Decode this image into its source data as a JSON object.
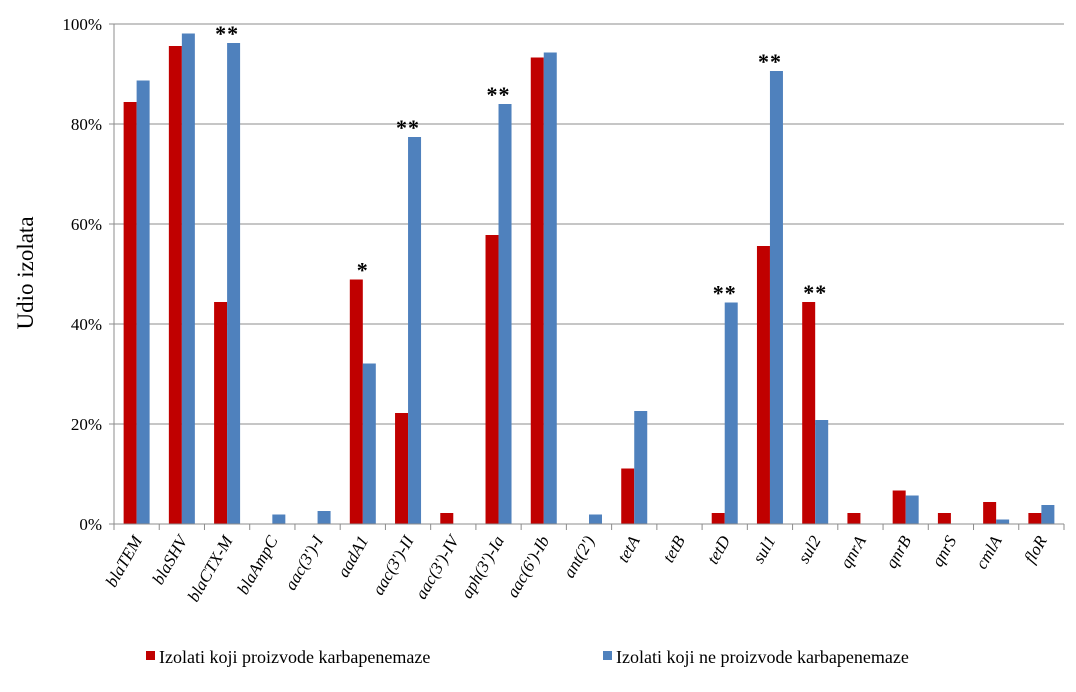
{
  "chart_data": {
    "type": "bar",
    "title": "",
    "xlabel": "",
    "ylabel": "Udio izolata",
    "ylim": [
      0,
      100
    ],
    "yticks": [
      "0%",
      "20%",
      "40%",
      "60%",
      "80%",
      "100%"
    ],
    "grid": true,
    "legend_position": "bottom",
    "categories": [
      "blaTEM",
      "blaSHV",
      "blaCTX-M",
      "blaAmpC",
      "aac(3')-I",
      "aadA1",
      "aac(3')-II",
      "aac(3')-IV",
      "aph(3')-Ia",
      "aac(6')-Ib",
      "ant(2')",
      "tetA",
      "tetB",
      "tetD",
      "sul1",
      "sul2",
      "qnrA",
      "qnrB",
      "qnrS",
      "cmlA",
      "floR"
    ],
    "series": [
      {
        "name": "Izolati koji proizvode karbapenemaze",
        "color": "#C00000",
        "values": [
          84.4,
          95.6,
          44.4,
          0,
          0,
          48.9,
          22.2,
          2.2,
          57.8,
          93.3,
          0,
          11.1,
          0,
          2.2,
          55.6,
          44.4,
          2.2,
          6.7,
          2.2,
          4.4,
          2.2
        ]
      },
      {
        "name": "Izolati koji ne proizvode karbapenemaze",
        "color": "#4F81BD",
        "values": [
          88.7,
          98.1,
          96.2,
          1.9,
          2.6,
          32.1,
          77.4,
          0,
          84.0,
          94.3,
          1.9,
          22.6,
          0,
          44.3,
          90.6,
          20.8,
          0,
          5.7,
          0,
          0.9,
          3.8
        ]
      }
    ],
    "annotations": [
      {
        "category": "blaCTX-M",
        "text": "**",
        "y": 96.2
      },
      {
        "category": "aadA1",
        "text": "*",
        "y": 48.9
      },
      {
        "category": "aac(3')-II",
        "text": "**",
        "y": 77.4
      },
      {
        "category": "aph(3')-Ia",
        "text": "**",
        "y": 84.0
      },
      {
        "category": "tetD",
        "text": "**",
        "y": 44.3
      },
      {
        "category": "sul1",
        "text": "**",
        "y": 90.6
      },
      {
        "category": "sul2",
        "text": "**",
        "y": 44.4
      }
    ]
  }
}
